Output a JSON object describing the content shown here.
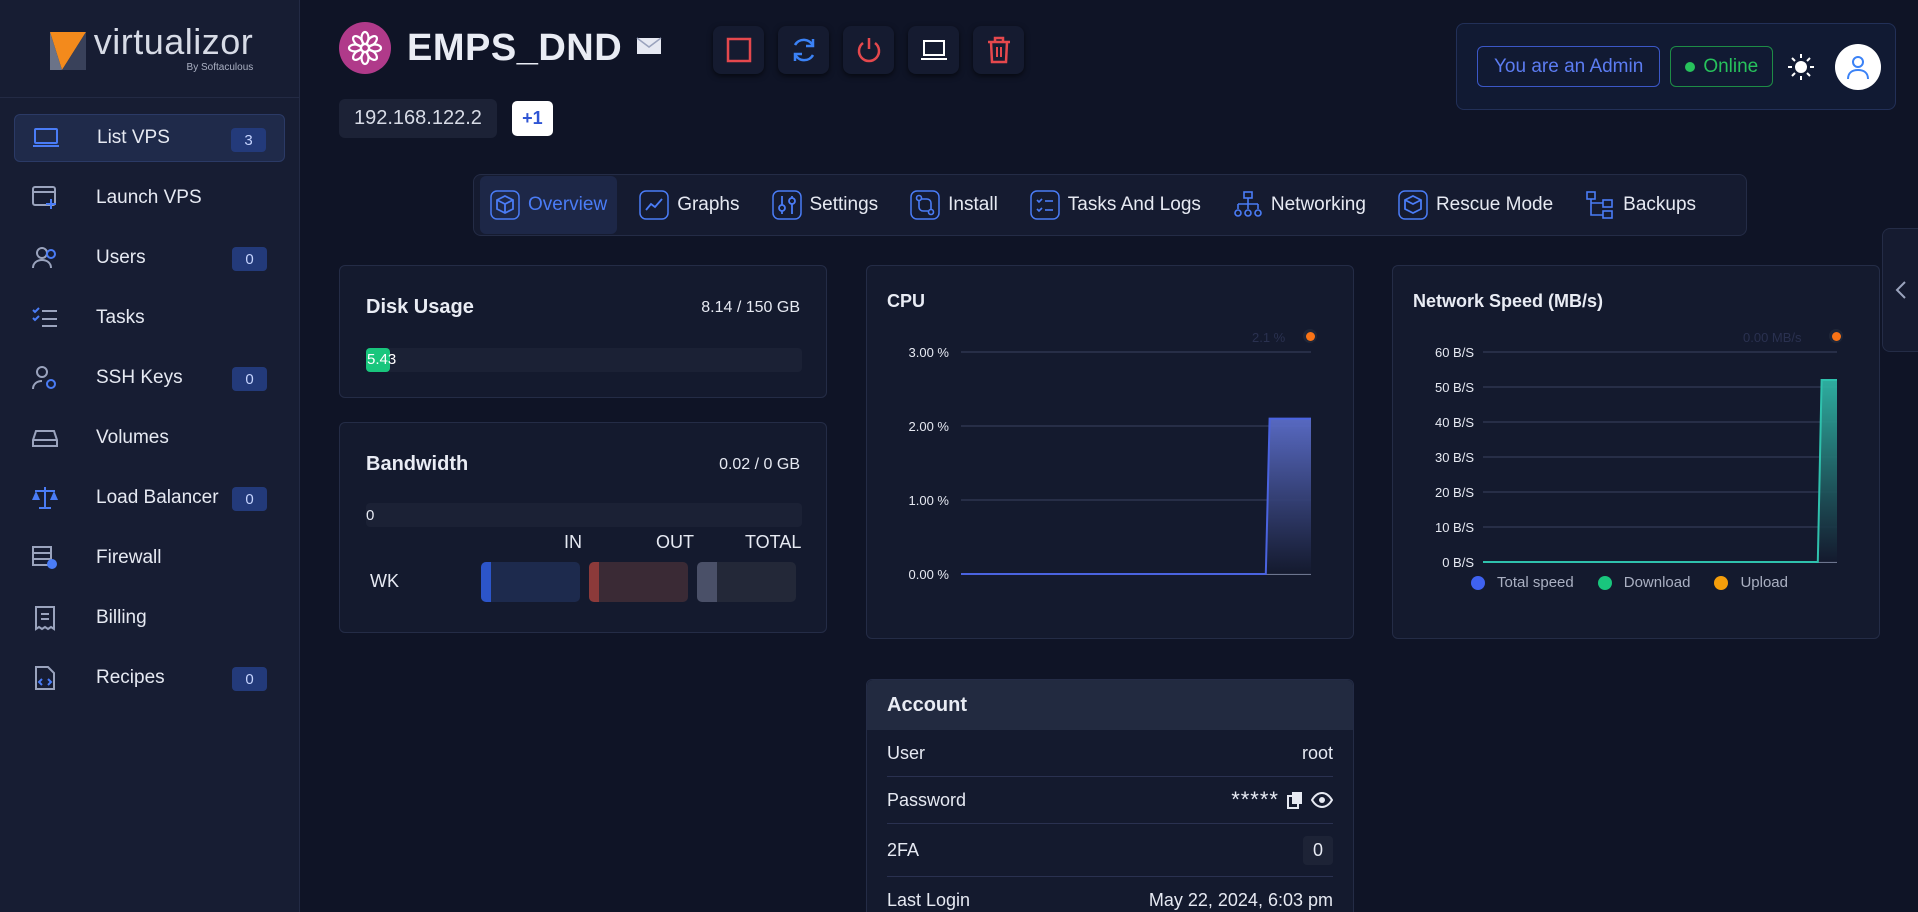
{
  "sidebar": {
    "logo_name": "virtualizor",
    "logo_by": "By Softaculous",
    "items": [
      {
        "label": "List VPS",
        "badge": "3",
        "icon": "laptop-icon"
      },
      {
        "label": "Launch VPS",
        "badge": null,
        "icon": "window-plus-icon"
      },
      {
        "label": "Users",
        "badge": "0",
        "icon": "users-icon"
      },
      {
        "label": "Tasks",
        "badge": null,
        "icon": "checklist-icon"
      },
      {
        "label": "SSH Keys",
        "badge": "0",
        "icon": "user-key-icon"
      },
      {
        "label": "Volumes",
        "badge": null,
        "icon": "hard-drive-icon"
      },
      {
        "label": "Load Balancer",
        "badge": "0",
        "icon": "scale-icon"
      },
      {
        "label": "Firewall",
        "badge": null,
        "icon": "firewall-icon"
      },
      {
        "label": "Billing",
        "badge": null,
        "icon": "receipt-icon"
      },
      {
        "label": "Recipes",
        "badge": "0",
        "icon": "code-file-icon"
      }
    ]
  },
  "header": {
    "vps_name": "EMPS_DND",
    "ip": "192.168.122.2",
    "ip_more": "+1",
    "admin_label": "You are an Admin",
    "status_label": "Online"
  },
  "tabs": [
    {
      "label": "Overview",
      "icon": "cube-icon"
    },
    {
      "label": "Graphs",
      "icon": "line-chart-icon"
    },
    {
      "label": "Settings",
      "icon": "sliders-icon"
    },
    {
      "label": "Install",
      "icon": "git-compare-icon"
    },
    {
      "label": "Tasks And Logs",
      "icon": "list-check-icon"
    },
    {
      "label": "Networking",
      "icon": "sitemap-icon"
    },
    {
      "label": "Rescue Mode",
      "icon": "rescue-cube-icon"
    },
    {
      "label": "Backups",
      "icon": "hierarchy-icon"
    }
  ],
  "disk": {
    "title": "Disk Usage",
    "amount": "8.14 / 150 GB",
    "bar_label": "5.43",
    "percent": 5.43
  },
  "bandwidth": {
    "title": "Bandwidth",
    "amount": "0.02 / 0 GB",
    "bar_label": "0",
    "col_in": "IN",
    "col_out": "OUT",
    "col_total": "TOTAL",
    "row_label": "WK"
  },
  "cpu": {
    "title": "CPU",
    "legend_value": "2.1 %"
  },
  "network": {
    "title": "Network Speed (MB/s)",
    "legend_value": "0.00 MB/s",
    "legend": [
      "Total speed",
      "Download",
      "Upload"
    ]
  },
  "account": {
    "title": "Account",
    "user_label": "User",
    "user_value": "root",
    "password_label": "Password",
    "password_value": "*****",
    "twofa_label": "2FA",
    "twofa_value": "0",
    "last_login_label": "Last Login",
    "last_login_value": "May 22, 2024, 6:03 pm"
  },
  "chart_data": [
    {
      "type": "area",
      "title": "CPU",
      "yticks": [
        "0.00 %",
        "1.00 %",
        "2.00 %",
        "3.00 %"
      ],
      "ylim": [
        0,
        3
      ],
      "series": [
        {
          "name": "CPU",
          "values": [
            0,
            0,
            0,
            0,
            0,
            0,
            0,
            0,
            0,
            0,
            0,
            0,
            0,
            0,
            0,
            0,
            0,
            0,
            0,
            0,
            0,
            0,
            0,
            0,
            0,
            0,
            0,
            0,
            0,
            0,
            0,
            0,
            0,
            0,
            0,
            0,
            0,
            0,
            0,
            0,
            0,
            0,
            0,
            0,
            0,
            0,
            0,
            0,
            0,
            0,
            0,
            0,
            0,
            0,
            0,
            0,
            0,
            0,
            0,
            0,
            0,
            0,
            0,
            0,
            0,
            0,
            0,
            0,
            0,
            0,
            0,
            0,
            0,
            0,
            0,
            0,
            0,
            0,
            0,
            0,
            0,
            0,
            2.1,
            2.1,
            2.1,
            2.1,
            2.1,
            2.1,
            2.1,
            2.1,
            2.1,
            2.1,
            2.1,
            2.1
          ]
        }
      ],
      "colors": {
        "line": "#4a63e0",
        "fill": "#5b6dc9"
      }
    },
    {
      "type": "area",
      "title": "Network Speed (MB/s)",
      "yticks": [
        "0 B/S",
        "10 B/S",
        "20 B/S",
        "30 B/S",
        "40 B/S",
        "50 B/S",
        "60 B/S"
      ],
      "ylim": [
        0,
        60
      ],
      "series": [
        {
          "name": "Total speed",
          "values": []
        },
        {
          "name": "Download",
          "values": [
            0,
            0,
            0,
            0,
            0,
            0,
            0,
            0,
            0,
            0,
            0,
            0,
            0,
            0,
            0,
            0,
            0,
            0,
            0,
            0,
            0,
            0,
            0,
            0,
            0,
            0,
            0,
            0,
            0,
            0,
            0,
            0,
            0,
            0,
            0,
            0,
            0,
            0,
            0,
            0,
            0,
            0,
            0,
            0,
            0,
            0,
            0,
            0,
            0,
            0,
            0,
            0,
            0,
            0,
            0,
            0,
            0,
            0,
            0,
            0,
            0,
            0,
            0,
            0,
            0,
            0,
            0,
            0,
            0,
            0,
            0,
            0,
            0,
            0,
            0,
            0,
            0,
            0,
            0,
            0,
            0,
            0,
            0,
            0,
            0,
            0,
            0,
            0,
            52,
            52,
            52,
            52,
            52
          ]
        },
        {
          "name": "Upload",
          "values": []
        }
      ],
      "legend_colors": [
        "#3f62f0",
        "#19c67d",
        "#f59e0b"
      ]
    }
  ]
}
